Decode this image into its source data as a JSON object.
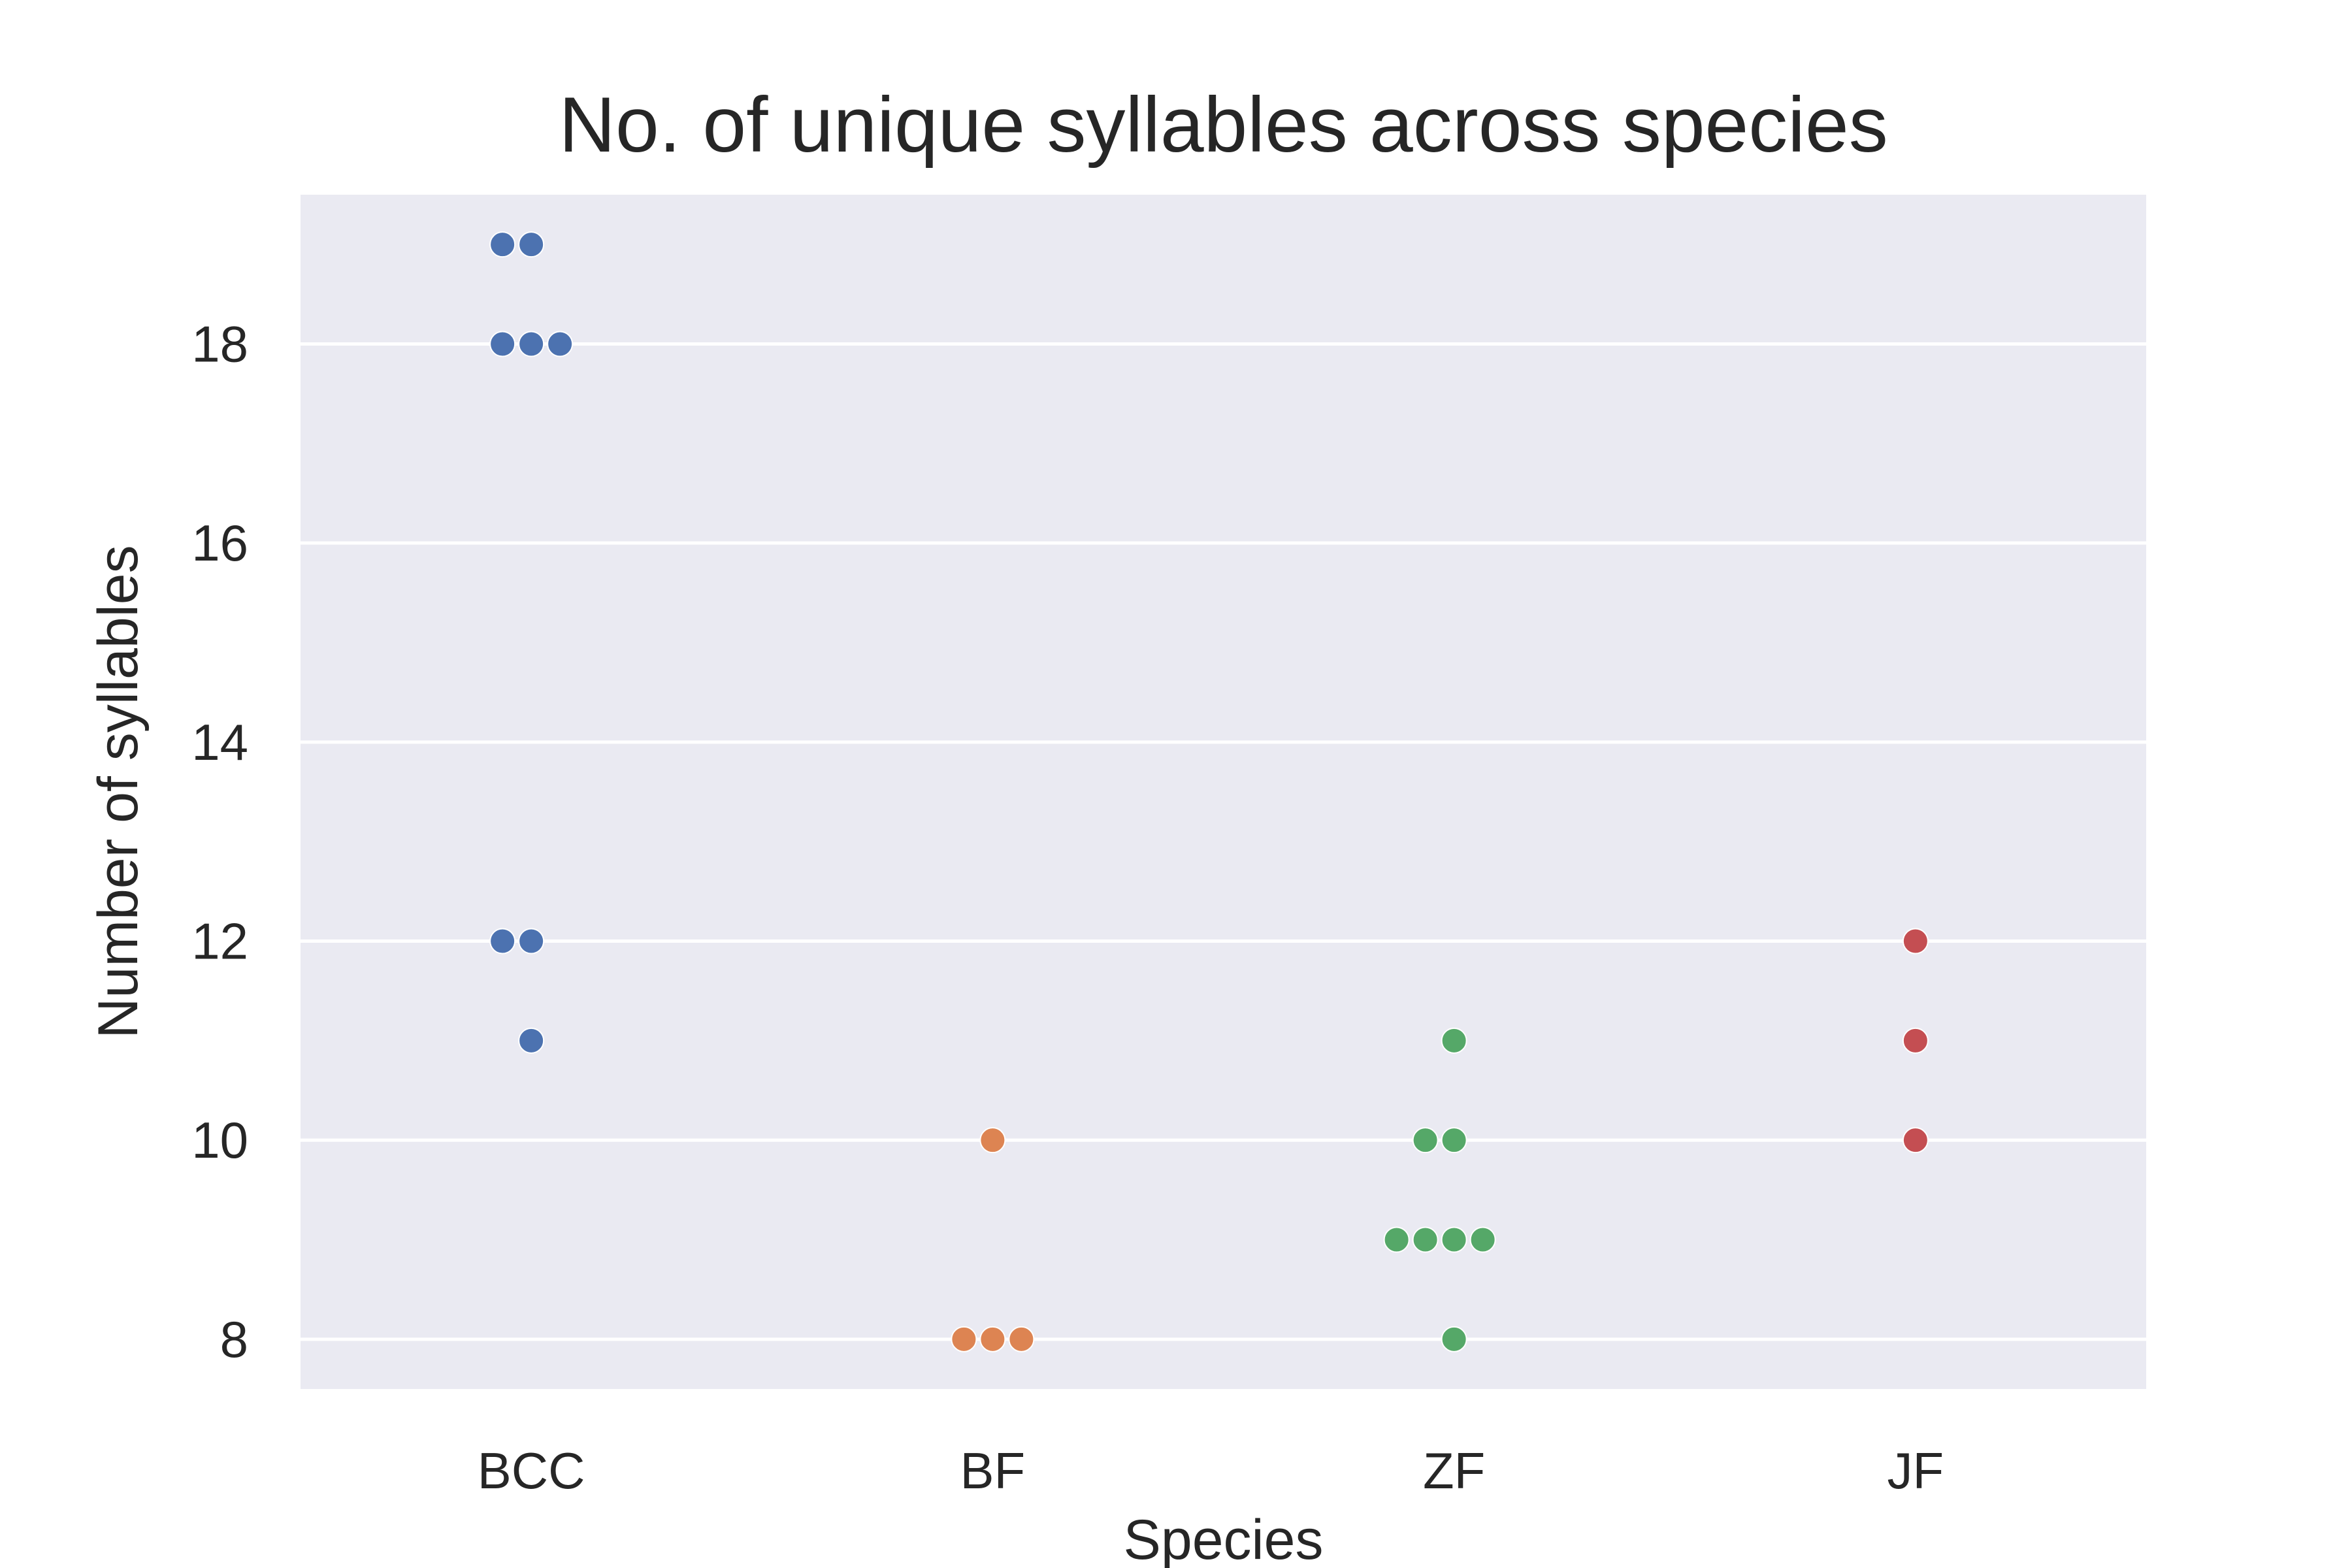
{
  "chart_data": {
    "type": "scatter",
    "subtype": "swarm",
    "title": "No. of unique syllables across species",
    "xlabel": "Species",
    "ylabel": "Number of syllables",
    "categories": [
      "BCC",
      "BF",
      "ZF",
      "JF"
    ],
    "ylim": [
      7.5,
      19.5
    ],
    "yticks": [
      8,
      10,
      12,
      14,
      16,
      18
    ],
    "grid": true,
    "legend": "none",
    "series": [
      {
        "category": "BCC",
        "color": "#4c72b0",
        "values": [
          19,
          19,
          18,
          18,
          18,
          12,
          12,
          11
        ]
      },
      {
        "category": "BF",
        "color": "#dd8452",
        "values": [
          10,
          8,
          8,
          8
        ]
      },
      {
        "category": "ZF",
        "color": "#55a868",
        "values": [
          11,
          10,
          10,
          9,
          9,
          9,
          9,
          8
        ]
      },
      {
        "category": "JF",
        "color": "#c44e52",
        "values": [
          12,
          11,
          10
        ]
      }
    ],
    "colors": {
      "plot_background": "#eaeaf2",
      "grid": "#ffffff",
      "text": "#262626"
    }
  }
}
